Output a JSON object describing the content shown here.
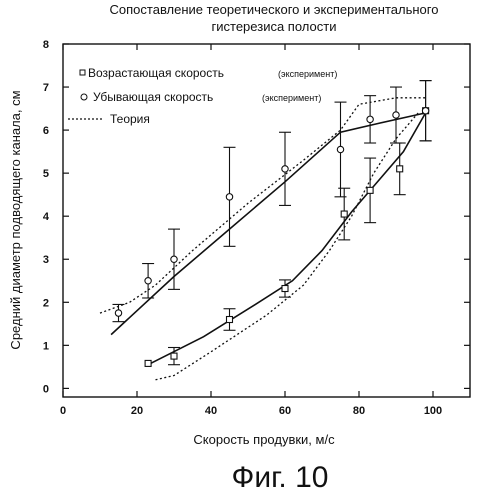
{
  "chart_data": {
    "type": "line",
    "title_line1": "Сопоставление теоретического и экспериментального",
    "title_line2": "гистерезиса полости",
    "xlabel": "Скорость продувки, м/с",
    "ylabel": "Средний диаметр подводящего канала, см",
    "xlim": [
      0,
      110
    ],
    "ylim": [
      -0.2,
      8
    ],
    "x_ticks": [
      0,
      20,
      40,
      60,
      80,
      100
    ],
    "y_ticks": [
      0,
      1,
      2,
      3,
      4,
      5,
      6,
      7,
      8
    ],
    "figure_caption": "Фиг. 10",
    "legend": [
      {
        "marker": "square",
        "label": "Возрастающая скорость",
        "note": "(эксперимент)"
      },
      {
        "marker": "circle",
        "label": "Убывающая скорость",
        "note": "(эксперимент)"
      },
      {
        "marker": "dotted",
        "label": "Теория",
        "note": ""
      }
    ],
    "series": [
      {
        "name": "Возрастающая скорость (эксперимент)",
        "marker": "square",
        "points": [
          {
            "x": 23,
            "y": 0.58,
            "err": 0.0
          },
          {
            "x": 30,
            "y": 0.75,
            "err": 0.2
          },
          {
            "x": 45,
            "y": 1.6,
            "err": 0.25
          },
          {
            "x": 60,
            "y": 2.32,
            "err": 0.2
          },
          {
            "x": 76,
            "y": 4.05,
            "err": 0.6
          },
          {
            "x": 83,
            "y": 4.6,
            "err": 0.75
          },
          {
            "x": 91,
            "y": 5.1,
            "err": 0.6
          },
          {
            "x": 98,
            "y": 6.45,
            "err": 0.7
          }
        ]
      },
      {
        "name": "Убывающая скорость (эксперимент)",
        "marker": "circle",
        "points": [
          {
            "x": 15,
            "y": 1.75,
            "err": 0.2
          },
          {
            "x": 23,
            "y": 2.5,
            "err": 0.4
          },
          {
            "x": 30,
            "y": 3.0,
            "err": 0.7
          },
          {
            "x": 45,
            "y": 4.45,
            "err": 1.15
          },
          {
            "x": 60,
            "y": 5.1,
            "err": 0.85
          },
          {
            "x": 75,
            "y": 5.55,
            "err": 1.1
          },
          {
            "x": 83,
            "y": 6.25,
            "err": 0.55
          },
          {
            "x": 90,
            "y": 6.35,
            "err": 0.65
          },
          {
            "x": 98,
            "y": 6.45,
            "err": 0.7
          }
        ]
      }
    ],
    "fit_lines": [
      {
        "style": "solid",
        "points": [
          [
            23,
            0.55
          ],
          [
            38,
            1.2
          ],
          [
            52,
            1.95
          ],
          [
            62,
            2.5
          ],
          [
            70,
            3.2
          ],
          [
            78,
            4.1
          ],
          [
            86,
            4.9
          ],
          [
            92,
            5.5
          ],
          [
            98,
            6.4
          ]
        ]
      },
      {
        "style": "solid",
        "points": [
          [
            13,
            1.25
          ],
          [
            30,
            2.6
          ],
          [
            45,
            3.7
          ],
          [
            60,
            4.8
          ],
          [
            75,
            5.95
          ],
          [
            85,
            6.15
          ],
          [
            98,
            6.4
          ]
        ]
      },
      {
        "style": "dotted",
        "points": [
          [
            10,
            1.75
          ],
          [
            18,
            2.0
          ],
          [
            25,
            2.4
          ],
          [
            35,
            3.2
          ],
          [
            50,
            4.3
          ],
          [
            65,
            5.3
          ],
          [
            75,
            6.0
          ],
          [
            80,
            6.6
          ],
          [
            90,
            6.75
          ],
          [
            98,
            6.75
          ]
        ]
      },
      {
        "style": "dotted",
        "points": [
          [
            25,
            0.2
          ],
          [
            30,
            0.3
          ],
          [
            40,
            0.85
          ],
          [
            55,
            1.7
          ],
          [
            65,
            2.4
          ],
          [
            72,
            3.2
          ],
          [
            78,
            4.0
          ],
          [
            84,
            5.0
          ],
          [
            90,
            5.8
          ],
          [
            96,
            6.4
          ]
        ]
      }
    ]
  }
}
